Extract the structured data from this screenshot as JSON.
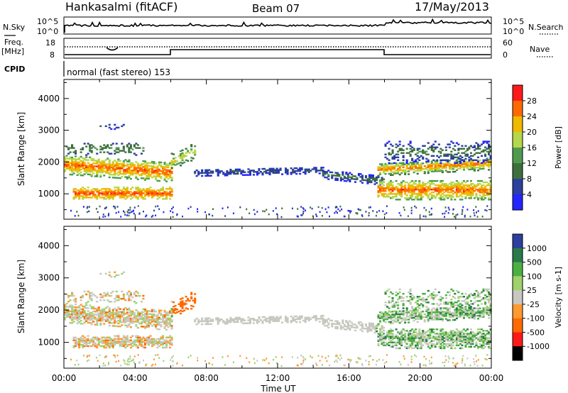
{
  "header": {
    "title": "Hankasalmi (fitACF)",
    "beam": "Beam 07",
    "date": "17/May/2013"
  },
  "strip_labels": {
    "nsky": "N.Sky",
    "nsearch": "N.Search",
    "freq": "Freq.",
    "freq_unit": "[MHz]",
    "nave": "Nave",
    "cpid": "CPID",
    "cpid_text": "normal (fast stereo) 153",
    "nsky_ticks": [
      "10^5",
      "10^0"
    ],
    "nsearch_ticks": [
      "10^5",
      "10^0"
    ],
    "freq_ticks": [
      "18",
      "8"
    ],
    "nave_ticks": [
      "60",
      "0"
    ]
  },
  "chart_data": [
    {
      "type": "heatmap",
      "name": "power",
      "ylabel": "Slant Range [km]",
      "xlabel": "",
      "xlim": [
        0,
        24
      ],
      "ylim": [
        200,
        4600
      ],
      "yticks": [
        "4000",
        "3000",
        "2000",
        "1000"
      ],
      "colorbar_label": "Power [dB]",
      "colorbar_ticks": [
        "28",
        "24",
        "20",
        "16",
        "12",
        "8",
        "4"
      ],
      "colorscale": [
        "#2424ff",
        "#2c3f9e",
        "#3d6f3d",
        "#4f9a4f",
        "#b5d84a",
        "#f0b800",
        "#ff6a00",
        "#ff1a1a"
      ],
      "grid": false
    },
    {
      "type": "heatmap",
      "name": "velocity",
      "ylabel": "Slant Range [km]",
      "xlabel": "Time UT",
      "xlim": [
        0,
        24
      ],
      "ylim": [
        200,
        4600
      ],
      "xticks": [
        "00:00",
        "04:00",
        "08:00",
        "12:00",
        "16:00",
        "20:00",
        "00:00"
      ],
      "yticks": [
        "4000",
        "3000",
        "2000",
        "1000"
      ],
      "colorbar_label": "Velocity [m s-1]",
      "colorbar_ticks": [
        "1000",
        "500",
        "100",
        "25",
        "-25",
        "-100",
        "-500",
        "-1000"
      ],
      "colorscale": [
        "#2c3f9e",
        "#2a7a4a",
        "#4bb041",
        "#9fd26a",
        "#c8c8c0",
        "#ff9a30",
        "#ff6a00",
        "#ff1a1a"
      ],
      "grid": false
    }
  ]
}
